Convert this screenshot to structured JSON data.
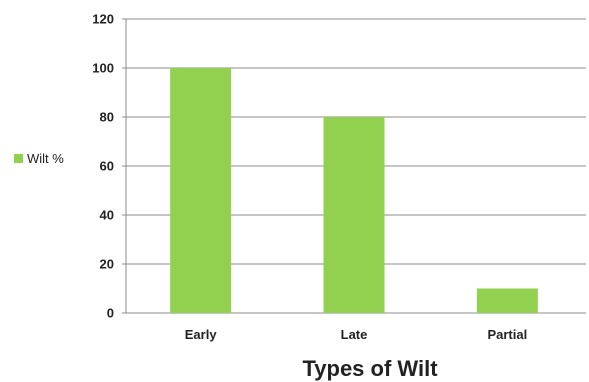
{
  "chart_data": {
    "type": "bar",
    "categories": [
      "Early",
      "Late",
      "Partial"
    ],
    "series": [
      {
        "name": "Wilt %",
        "values": [
          100,
          80,
          10
        ]
      }
    ],
    "title": "",
    "xlabel": "Types of Wilt",
    "ylabel": "",
    "ylim": [
      0,
      120
    ],
    "yticks": [
      "0",
      "20",
      "40",
      "60",
      "80",
      "100",
      "120"
    ],
    "grid": true,
    "legend_position": "left",
    "bar_color": "#92d050",
    "grid_color": "#8c8c8c"
  }
}
